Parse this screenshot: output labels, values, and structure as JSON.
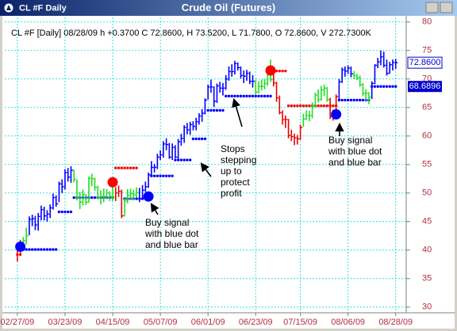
{
  "window": {
    "title": "CL #F Daily"
  },
  "chart_data": {
    "type": "ohlc",
    "title": "Crude Oil (Futures)",
    "header": "CL #F [Daily] 08/28/09 h +0.3700 C 72.8600, H 73.5200, L 71.7800, O 72.8600, V 272.7300K",
    "xlim": [
      -2.1,
      130
    ],
    "xticks": [
      {
        "value": 0,
        "label": "02/27/09"
      },
      {
        "value": 16,
        "label": "03/23/09"
      },
      {
        "value": 32,
        "label": "04/15/09"
      },
      {
        "value": 48,
        "label": "05/07/09"
      },
      {
        "value": 64,
        "label": "06/01/09"
      },
      {
        "value": 80,
        "label": "06/23/09"
      },
      {
        "value": 95,
        "label": "07/15/09"
      },
      {
        "value": 111,
        "label": "08/06/09"
      },
      {
        "value": 127,
        "label": "08/28/09"
      }
    ],
    "ylim": [
      29,
      80.8
    ],
    "yticks": [
      30,
      35,
      40,
      45,
      50,
      55,
      60,
      65,
      70,
      75,
      80
    ],
    "grid": true,
    "grid_color": "#00dada",
    "high": [
      40.9,
      41.8,
      42.3,
      43.9,
      45.9,
      46.2,
      46.0,
      46.5,
      47.8,
      47.6,
      47.0,
      48.0,
      49.9,
      49.6,
      52.0,
      52.4,
      54.2,
      54.4,
      54.7,
      54.1,
      52.4,
      50.2,
      50.6,
      49.8,
      52.9,
      53.4,
      52.7,
      51.3,
      50.5,
      50.8,
      50.7,
      50.3,
      51.4,
      51.0,
      51.3,
      50.6,
      49.1,
      50.7,
      50.8,
      50.6,
      51.0,
      50.9,
      51.4,
      52.0,
      53.6,
      55.6,
      55.1,
      56.9,
      57.5,
      59.1,
      59.6,
      58.8,
      58.7,
      58.4,
      59.5,
      60.4,
      61.9,
      62.3,
      62.5,
      62.6,
      63.2,
      64.0,
      64.7,
      66.6,
      69.0,
      69.9,
      68.7,
      69.2,
      69.5,
      69.3,
      70.7,
      72.2,
      72.6,
      73.2,
      72.9,
      72.2,
      71.5,
      71.6,
      71.3,
      70.7,
      69.9,
      69.6,
      69.9,
      70.0,
      72.2,
      73.4,
      71.1,
      69.5,
      67.1,
      64.5,
      63.6,
      63.0,
      61.1,
      60.4,
      60.2,
      62.0,
      63.9,
      64.5,
      64.4,
      65.9,
      67.6,
      68.2,
      68.8,
      69.0,
      68.6,
      66.7,
      64.6,
      67.3,
      70.0,
      72.0,
      72.2,
      72.4,
      72.2,
      71.4,
      70.9,
      70.6,
      69.3,
      68.2,
      67.7,
      69.6,
      72.6,
      73.7,
      75.0,
      74.8,
      73.4,
      73.0,
      73.4,
      73.52
    ],
    "low": [
      38.0,
      39.1,
      40.0,
      41.0,
      42.6,
      44.2,
      43.5,
      43.4,
      45.2,
      45.2,
      45.0,
      45.6,
      47.1,
      47.6,
      48.4,
      50.0,
      50.6,
      52.0,
      51.8,
      51.9,
      48.7,
      47.2,
      47.8,
      47.9,
      48.3,
      51.2,
      50.4,
      48.9,
      48.0,
      48.4,
      48.9,
      48.6,
      48.6,
      48.6,
      49.3,
      45.6,
      45.9,
      48.2,
      48.8,
      48.7,
      49.2,
      48.4,
      48.9,
      50.2,
      50.9,
      52.9,
      53.6,
      54.2,
      55.8,
      56.2,
      57.5,
      56.0,
      55.8,
      56.1,
      55.9,
      58.3,
      58.8,
      60.3,
      60.2,
      61.0,
      61.0,
      62.0,
      62.5,
      63.8,
      66.4,
      67.6,
      65.1,
      65.8,
      67.6,
      67.1,
      68.1,
      69.7,
      70.4,
      70.8,
      71.5,
      70.1,
      69.3,
      69.7,
      69.1,
      68.5,
      67.2,
      67.5,
      68.0,
      68.2,
      68.8,
      69.5,
      68.7,
      66.0,
      63.8,
      62.0,
      61.4,
      59.6,
      59.1,
      58.4,
      58.5,
      59.3,
      61.6,
      62.8,
      62.6,
      63.1,
      65.0,
      65.9,
      66.2,
      67.0,
      66.0,
      63.0,
      62.7,
      63.2,
      66.5,
      69.3,
      70.4,
      70.9,
      70.3,
      70.0,
      69.8,
      68.6,
      67.0,
      66.2,
      65.6,
      66.5,
      69.1,
      71.9,
      72.4,
      72.0,
      70.6,
      70.9,
      71.5,
      71.78
    ],
    "close": [
      40.0,
      40.5,
      41.6,
      42.5,
      45.4,
      45.5,
      44.4,
      45.9,
      47.1,
      46.0,
      46.3,
      47.4,
      49.2,
      48.1,
      51.6,
      51.1,
      53.6,
      52.8,
      54.0,
      52.4,
      49.3,
      48.4,
      49.7,
      48.4,
      52.6,
      52.5,
      51.0,
      49.2,
      49.4,
      49.4,
      50.0,
      49.4,
      49.3,
      50.0,
      50.3,
      46.0,
      48.6,
      49.6,
      49.9,
      49.7,
      50.1,
      49.0,
      50.5,
      51.1,
      53.2,
      54.5,
      54.5,
      56.3,
      56.7,
      58.6,
      58.5,
      56.3,
      58.0,
      56.3,
      59.0,
      59.6,
      61.5,
      61.1,
      62.0,
      61.7,
      62.5,
      63.5,
      64.0,
      66.3,
      68.6,
      68.6,
      66.1,
      68.8,
      68.4,
      68.4,
      70.0,
      71.3,
      71.3,
      72.7,
      72.0,
      70.6,
      70.5,
      71.0,
      69.6,
      69.6,
      67.7,
      68.7,
      68.7,
      69.2,
      71.5,
      69.9,
      69.3,
      66.7,
      64.1,
      62.9,
      62.9,
      60.1,
      59.9,
      59.7,
      59.5,
      61.5,
      63.0,
      63.6,
      63.6,
      65.4,
      67.2,
      66.4,
      68.1,
      68.4,
      66.4,
      63.4,
      63.4,
      66.9,
      69.5,
      71.6,
      71.4,
      71.9,
      70.9,
      70.6,
      70.2,
      69.0,
      67.5,
      67.5,
      66.8,
      69.2,
      72.4,
      73.0,
      73.9,
      72.4,
      71.0,
      72.5,
      72.9,
      72.86
    ],
    "bar_colors": [
      "#e00",
      "#e00",
      "#2d2",
      "#2d2",
      "#00f",
      "#00f",
      "#00f",
      "#00f",
      "#00f",
      "#00f",
      "#00f",
      "#00f",
      "#00f",
      "#00f",
      "#00f",
      "#00f",
      "#00f",
      "#00f",
      "#00f",
      "#2d2",
      "#2d2",
      "#2d2",
      "#2d2",
      "#2d2",
      "#2d2",
      "#2d2",
      "#2d2",
      "#2d2",
      "#2d2",
      "#2d2",
      "#2d2",
      "#2d2",
      "#2d2",
      "#e00",
      "#e00",
      "#e00",
      "#2d2",
      "#2d2",
      "#2d2",
      "#2d2",
      "#2d2",
      "#00f",
      "#00f",
      "#00f",
      "#00f",
      "#00f",
      "#00f",
      "#00f",
      "#00f",
      "#00f",
      "#00f",
      "#00f",
      "#00f",
      "#00f",
      "#00f",
      "#00f",
      "#00f",
      "#00f",
      "#00f",
      "#00f",
      "#00f",
      "#00f",
      "#00f",
      "#00f",
      "#00f",
      "#00f",
      "#00f",
      "#00f",
      "#00f",
      "#00f",
      "#00f",
      "#00f",
      "#00f",
      "#00f",
      "#00f",
      "#00f",
      "#00f",
      "#00f",
      "#00f",
      "#00f",
      "#2d2",
      "#2d2",
      "#2d2",
      "#2d2",
      "#2d2",
      "#2d2",
      "#e00",
      "#e00",
      "#e00",
      "#e00",
      "#e00",
      "#e00",
      "#e00",
      "#e00",
      "#e00",
      "#e00",
      "#2d2",
      "#2d2",
      "#2d2",
      "#2d2",
      "#2d2",
      "#2d2",
      "#2d2",
      "#2d2",
      "#2d2",
      "#e00",
      "#e00",
      "#e00",
      "#00f",
      "#00f",
      "#00f",
      "#00f",
      "#00f",
      "#2d2",
      "#2d2",
      "#2d2",
      "#2d2",
      "#2d2",
      "#2d2",
      "#00f",
      "#00f",
      "#00f",
      "#00f",
      "#00f",
      "#00f",
      "#00f",
      "#00f",
      "#00f"
    ],
    "last_close_label": "72.8600",
    "stops_long": {
      "color": "#0000ff",
      "values": [
        null,
        null,
        40.1,
        40.1,
        40.1,
        40.1,
        40.1,
        40.1,
        40.1,
        40.1,
        40.1,
        40.1,
        40.1,
        40.1,
        46.7,
        46.7,
        46.7,
        46.7,
        46.7,
        49.2,
        49.2,
        49.2,
        49.2,
        49.2,
        49.2,
        49.2,
        49.2,
        49.2,
        49.2,
        49.2,
        49.2,
        49.2,
        49.2,
        null,
        null,
        null,
        49,
        49,
        49,
        49,
        49,
        49,
        49,
        49,
        49,
        53,
        53,
        53,
        53,
        53,
        53,
        53,
        53,
        55.8,
        55.8,
        55.8,
        55.8,
        55.8,
        55.8,
        59.5,
        59.5,
        59.5,
        59.5,
        59.5,
        64.5,
        64.5,
        64.5,
        64.5,
        64.5,
        64.5,
        67,
        67,
        67,
        67,
        67,
        67,
        67,
        67,
        67,
        67,
        67,
        67,
        67,
        67,
        67,
        67,
        null,
        null,
        null,
        null,
        null,
        null,
        null,
        null,
        null,
        null,
        null,
        null,
        null,
        null,
        null,
        null,
        null,
        null,
        null,
        null,
        null,
        null,
        66.3,
        66.3,
        66.3,
        66.3,
        66.3,
        66.3,
        66.3,
        66.3,
        66.3,
        66.3,
        66.3,
        68.6896,
        68.6896,
        68.6896,
        68.6896,
        68.6896,
        68.6896,
        68.6896,
        68.6896,
        68.6896
      ]
    },
    "stops_short": {
      "color": "#ff0000",
      "values": [
        39.2,
        39.2,
        null,
        null,
        null,
        null,
        null,
        null,
        null,
        null,
        null,
        null,
        null,
        null,
        null,
        null,
        null,
        null,
        null,
        null,
        null,
        null,
        null,
        null,
        null,
        null,
        null,
        null,
        null,
        null,
        null,
        null,
        null,
        54.4,
        54.4,
        54.4,
        54.4,
        54.4,
        54.4,
        54.4,
        54.4,
        null,
        null,
        null,
        null,
        null,
        null,
        null,
        null,
        null,
        null,
        null,
        null,
        null,
        null,
        null,
        null,
        null,
        null,
        null,
        null,
        null,
        null,
        null,
        null,
        null,
        null,
        null,
        null,
        null,
        null,
        null,
        null,
        null,
        null,
        null,
        null,
        null,
        null,
        null,
        null,
        null,
        null,
        null,
        null,
        null,
        71.4,
        71.4,
        71.4,
        71.4,
        71.4,
        65.3,
        65.3,
        65.3,
        65.3,
        65.3,
        65.3,
        65.3,
        65.3,
        65.3,
        65.3,
        65.3,
        65.3,
        65.3,
        65.3,
        65.3,
        65.3,
        65.3,
        null,
        null,
        null,
        null,
        null,
        null,
        null,
        null,
        null,
        null,
        null,
        null,
        null,
        null,
        null,
        null,
        null,
        null,
        null,
        null
      ]
    },
    "signals": {
      "x": [
        1,
        32,
        44,
        85,
        107
      ],
      "values": [
        40.6,
        51.9,
        49.4,
        71.5,
        63.8
      ],
      "colors": [
        "#0000ff",
        "#ff0000",
        "#0000ff",
        "#ff0000",
        "#0000ff"
      ]
    },
    "annotations": [
      {
        "lines": [
          "Buy signal",
          "with blue dot",
          "and blue bar"
        ]
      },
      {
        "lines": [
          "Stops",
          "stepping",
          "up to",
          "protect",
          "profit"
        ]
      },
      {
        "lines": [
          "Buy signal",
          "with blue dot",
          "and blue bar"
        ]
      }
    ]
  }
}
